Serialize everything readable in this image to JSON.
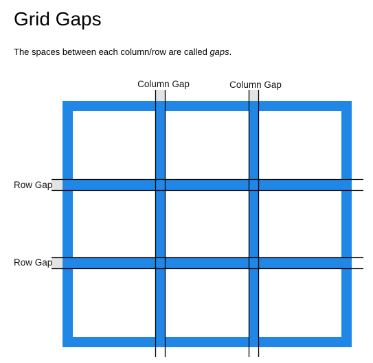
{
  "page": {
    "title": "Grid Gaps",
    "intro_prefix": "The spaces between each column/row are called ",
    "intro_term": "gaps",
    "intro_suffix": "."
  },
  "diagram": {
    "labels": {
      "column_gap_1": "Column Gap",
      "column_gap_2": "Column Gap",
      "row_gap_1": "Row Gap",
      "row_gap_2": "Row Gap"
    },
    "colors": {
      "grid_blue": "#2187e7",
      "gap_highlight": "#e3e3e3",
      "guide_line": "#000000",
      "cell_fill": "#ffffff"
    },
    "structure": {
      "columns": 3,
      "rows": 3
    }
  }
}
